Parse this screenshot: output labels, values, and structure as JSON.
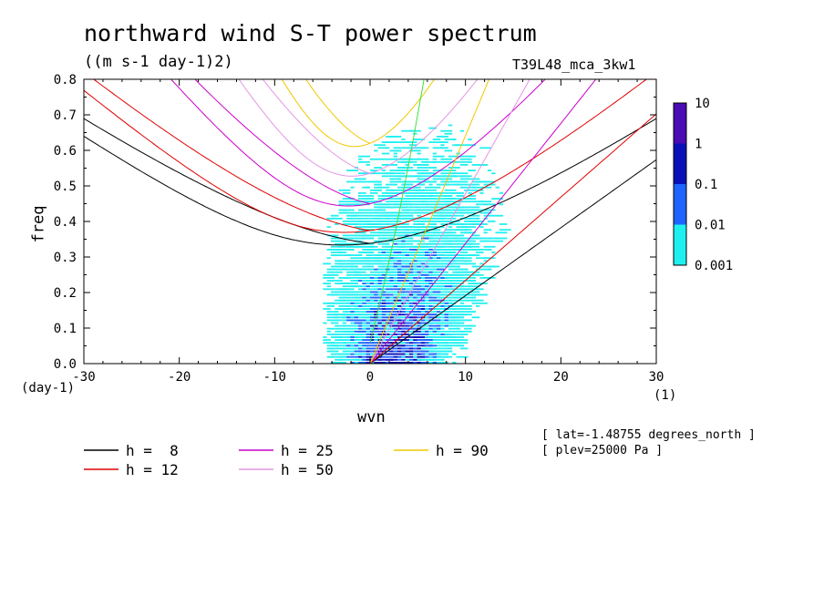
{
  "header": {
    "title": "northward wind S-T power spectrum",
    "units": "((m s-1 day-1)2)",
    "experiment": "T39L48_mca_3kw1"
  },
  "footer": {
    "lat": "[ lat=-1.48755 degrees_north ]",
    "plev": "[ plev=25000 Pa ]"
  },
  "chart_data": {
    "type": "heatmap",
    "xlabel": "wvn",
    "ylabel": "freq",
    "xunit": "(1)",
    "yunit": "(day-1)",
    "xlim": [
      -30,
      30
    ],
    "ylim": [
      0,
      0.8
    ],
    "xticks": [
      -30,
      -20,
      -10,
      0,
      10,
      20,
      30
    ],
    "xtick_labels": [
      "-30",
      "-20",
      "-10",
      "0",
      "10",
      "20",
      "30"
    ],
    "yticks": [
      0,
      0.1,
      0.2,
      0.3,
      0.4,
      0.5,
      0.6,
      0.7,
      0.8
    ],
    "ytick_labels": [
      "0.0",
      "0.1",
      "0.2",
      "0.3",
      "0.4",
      "0.5",
      "0.6",
      "0.7",
      "0.8"
    ],
    "colorbar": {
      "levels": [
        "10",
        "1",
        "0.1",
        "0.01",
        "0.001"
      ],
      "colors": [
        "#4a0cb4",
        "#0a10b8",
        "#1e64ff",
        "#1ef0f0"
      ]
    },
    "dispersion_curves": [
      {
        "label": "h =  8",
        "h": 8,
        "color": "#000000"
      },
      {
        "label": "h = 12",
        "h": 12,
        "color": "#e00000"
      },
      {
        "label": "h = 25",
        "h": 25,
        "color": "#cc00cc"
      },
      {
        "label": "h = 50",
        "h": 50,
        "color": "#e496e4"
      },
      {
        "label": "h = 90",
        "h": 90,
        "color": "#f0c800"
      }
    ],
    "green_curve_color": "#40e040",
    "grid": false,
    "legend_position": "bottom-left"
  }
}
